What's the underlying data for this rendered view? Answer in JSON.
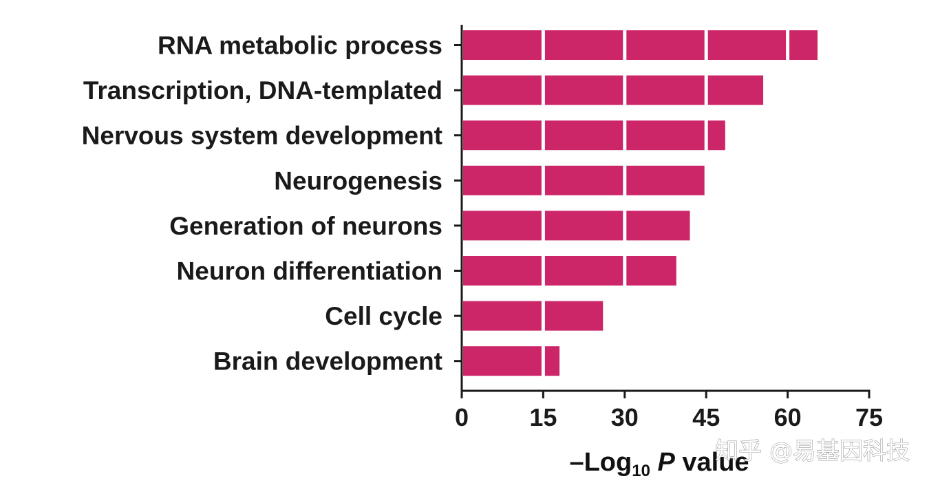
{
  "chart_data": {
    "type": "bar",
    "orientation": "horizontal",
    "categories": [
      "RNA metabolic process",
      "Transcription, DNA-templated",
      "Nervous system development",
      "Neurogenesis",
      "Generation of neurons",
      "Neuron differentiation",
      "Cell cycle",
      "Brain development"
    ],
    "values": [
      65.5,
      55.5,
      48.5,
      45,
      42,
      39.5,
      26,
      18
    ],
    "xlim": [
      0,
      75
    ],
    "xticks": [
      "0",
      "15",
      "30",
      "45",
      "60",
      "75"
    ],
    "xlabel": {
      "prefix": "–Log",
      "subscript": "10",
      "italic": " P",
      "suffix": " value"
    },
    "bar_color": "#cc2668",
    "grid": false,
    "legend": "none"
  },
  "watermark": "知乎 @易基因科技"
}
